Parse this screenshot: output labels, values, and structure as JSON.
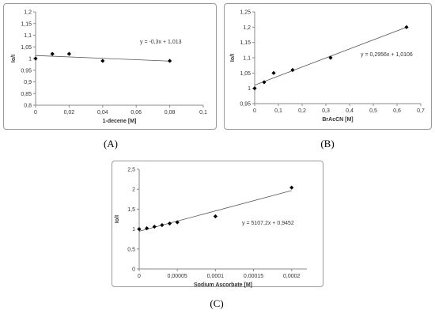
{
  "chart_data": [
    {
      "type": "scatter",
      "caption": "(A)",
      "xlabel": "1-decene [M]",
      "ylabel": "Io/I",
      "xlim": [
        0,
        0.1
      ],
      "ylim": [
        0.8,
        1.2
      ],
      "xticks": [
        0,
        0.02,
        0.04,
        0.06,
        0.08,
        0.1
      ],
      "yticks": [
        0.8,
        0.85,
        0.9,
        0.95,
        1,
        1.05,
        1.1,
        1.15,
        1.2
      ],
      "xtick_labels": [
        "0",
        "0,02",
        "0,04",
        "0,06",
        "0,08",
        "0,1"
      ],
      "ytick_labels": [
        "0,8",
        "0,85",
        "0,9",
        "0,95",
        "1",
        "1,05",
        "1,1",
        "1,15",
        "1,2"
      ],
      "series": [
        {
          "x": [
            0,
            0.01,
            0.02,
            0.04,
            0.08
          ],
          "y": [
            1.0,
            1.02,
            1.02,
            0.99,
            0.99
          ]
        }
      ],
      "trendline": {
        "slope": -0.3,
        "intercept": 1.013,
        "x_range": [
          0,
          0.08
        ],
        "label": "y = -0,3x + 1,013"
      },
      "grid": false
    },
    {
      "type": "scatter",
      "caption": "(B)",
      "xlabel": "BrAcCN [M]",
      "ylabel": "Io/I",
      "xlim": [
        0,
        0.7
      ],
      "ylim": [
        0.95,
        1.25
      ],
      "xticks": [
        0,
        0.1,
        0.2,
        0.3,
        0.4,
        0.5,
        0.6,
        0.7
      ],
      "yticks": [
        0.95,
        1,
        1.05,
        1.1,
        1.15,
        1.2,
        1.25
      ],
      "xtick_labels": [
        "0",
        "0,1",
        "0,2",
        "0,3",
        "0,4",
        "0,5",
        "0,6",
        "0,7"
      ],
      "ytick_labels": [
        "0,95",
        "1",
        "1,05",
        "1,1",
        "1,15",
        "1,2",
        "1,25"
      ],
      "series": [
        {
          "x": [
            0,
            0.04,
            0.08,
            0.16,
            0.32,
            0.64
          ],
          "y": [
            1.0,
            1.02,
            1.05,
            1.06,
            1.1,
            1.2
          ]
        }
      ],
      "trendline": {
        "slope": 0.2956,
        "intercept": 1.0106,
        "x_range": [
          0,
          0.64
        ],
        "label": "y = 0,2956x + 1,0106"
      },
      "grid": false
    },
    {
      "type": "scatter",
      "caption": "(C)",
      "xlabel": "Sodium Ascorbate [M]",
      "ylabel": "Io/I",
      "xlim": [
        0,
        0.00022
      ],
      "ylim": [
        0,
        2.5
      ],
      "xticks": [
        0,
        5e-05,
        0.0001,
        0.00015,
        0.0002
      ],
      "yticks": [
        0,
        0.5,
        1,
        1.5,
        2,
        2.5
      ],
      "xtick_labels": [
        "0",
        "0,00005",
        "0,0001",
        "0,00015",
        "0,0002"
      ],
      "ytick_labels": [
        "0",
        "0,5",
        "1",
        "1,5",
        "2",
        "2,5"
      ],
      "series": [
        {
          "x": [
            0,
            1e-05,
            2e-05,
            3e-05,
            4e-05,
            5e-05,
            0.0001,
            0.0002
          ],
          "y": [
            1.0,
            1.02,
            1.06,
            1.1,
            1.14,
            1.17,
            1.32,
            2.04
          ]
        }
      ],
      "trendline": {
        "slope": 5107.2,
        "intercept": 0.9452,
        "x_range": [
          0,
          0.0002
        ],
        "label": "y = 5107,2x + 0,9452"
      },
      "grid": false
    }
  ]
}
